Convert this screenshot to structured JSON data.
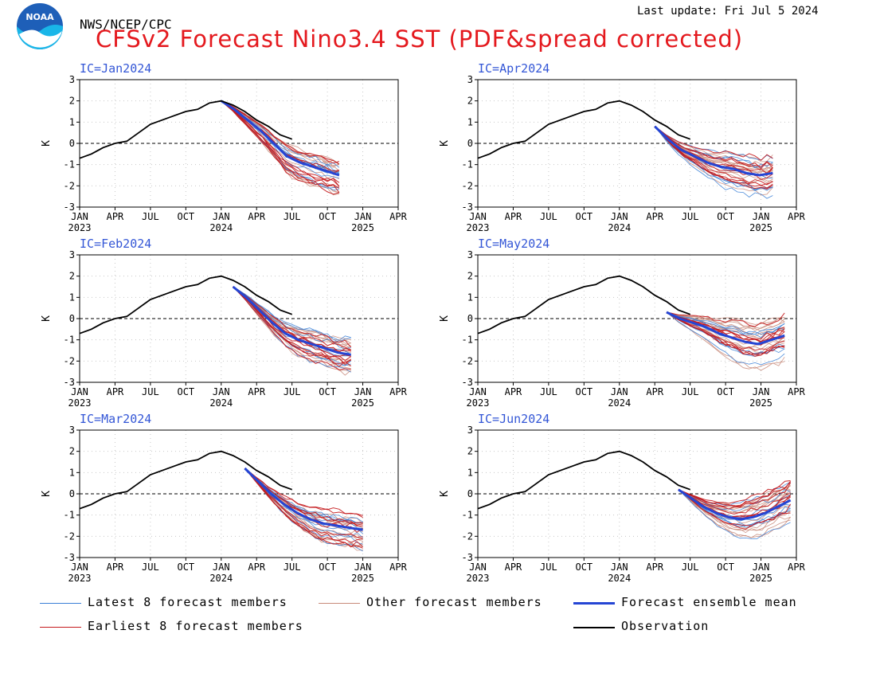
{
  "header": {
    "agency": "NWS/NCEP/CPC",
    "last_update": "Last update: Fri Jul 5 2024",
    "title": "CFSv2 Forecast Nino3.4 SST (PDF&spread corrected)"
  },
  "logo": {
    "text": "NOAA",
    "icon": "noaa-logo-icon"
  },
  "colors": {
    "latest": "#3a7fd6",
    "other": "#c88a7a",
    "earliest": "#c4181c",
    "mean": "#2545d4",
    "observation": "#000000",
    "panel_label": "#3356d6",
    "title": "#e4191e"
  },
  "legend": {
    "latest": "Latest 8 forecast members",
    "other": "Other forecast members",
    "mean": "Forecast ensemble mean",
    "earliest": "Earliest 8 forecast members",
    "observation": "Observation"
  },
  "chart_data": [
    {
      "type": "line",
      "ic": "IC=Jan2024",
      "ylabel": "K",
      "ylim": [
        -3,
        3
      ],
      "yticks": [
        -3,
        -2,
        -1,
        0,
        1,
        2,
        3
      ],
      "xticks": [
        "JAN",
        "APR",
        "JUL",
        "OCT",
        "JAN",
        "APR",
        "JUL",
        "OCT",
        "JAN",
        "APR"
      ],
      "years": [
        {
          "index": 0,
          "label": "2023"
        },
        {
          "index": 4,
          "label": "2024"
        },
        {
          "index": 8,
          "label": "2025"
        }
      ],
      "observation": {
        "months": [
          0,
          1,
          2,
          3,
          4,
          5,
          6,
          7,
          8,
          9,
          10,
          11,
          12,
          13,
          14,
          15,
          16,
          17,
          18
        ],
        "values": [
          -0.7,
          -0.5,
          -0.2,
          0.0,
          0.1,
          0.5,
          0.9,
          1.1,
          1.3,
          1.5,
          1.6,
          1.9,
          2.0,
          1.8,
          1.5,
          1.1,
          0.8,
          0.4,
          0.2
        ]
      },
      "forecast_start_month": 12,
      "mean": [
        2.0,
        1.6,
        1.1,
        0.6,
        0.0,
        -0.6,
        -0.9,
        -1.1,
        -1.3,
        -1.5
      ],
      "spread": [
        -0.9,
        0.6
      ]
    },
    {
      "type": "line",
      "ic": "IC=Apr2024",
      "ylabel": "K",
      "ylim": [
        -3,
        3
      ],
      "yticks": [
        -3,
        -2,
        -1,
        0,
        1,
        2,
        3
      ],
      "xticks": [
        "JAN",
        "APR",
        "JUL",
        "OCT",
        "JAN",
        "APR",
        "JUL",
        "OCT",
        "JAN",
        "APR"
      ],
      "years": [
        {
          "index": 0,
          "label": "2023"
        },
        {
          "index": 4,
          "label": "2024"
        },
        {
          "index": 8,
          "label": "2025"
        }
      ],
      "observation": {
        "months": [
          0,
          1,
          2,
          3,
          4,
          5,
          6,
          7,
          8,
          9,
          10,
          11,
          12,
          13,
          14,
          15,
          16,
          17,
          18
        ],
        "values": [
          -0.7,
          -0.5,
          -0.2,
          0.0,
          0.1,
          0.5,
          0.9,
          1.1,
          1.3,
          1.5,
          1.6,
          1.9,
          2.0,
          1.8,
          1.5,
          1.1,
          0.8,
          0.4,
          0.2
        ]
      },
      "forecast_start_month": 15,
      "mean": [
        0.8,
        0.2,
        -0.3,
        -0.6,
        -0.9,
        -1.1,
        -1.2,
        -1.4,
        -1.5,
        -1.4
      ],
      "spread": [
        -1.0,
        0.8
      ]
    },
    {
      "type": "line",
      "ic": "IC=Feb2024",
      "ylabel": "K",
      "ylim": [
        -3,
        3
      ],
      "yticks": [
        -3,
        -2,
        -1,
        0,
        1,
        2,
        3
      ],
      "xticks": [
        "JAN",
        "APR",
        "JUL",
        "OCT",
        "JAN",
        "APR",
        "JUL",
        "OCT",
        "JAN",
        "APR"
      ],
      "years": [
        {
          "index": 0,
          "label": "2023"
        },
        {
          "index": 4,
          "label": "2024"
        },
        {
          "index": 8,
          "label": "2025"
        }
      ],
      "observation": {
        "months": [
          0,
          1,
          2,
          3,
          4,
          5,
          6,
          7,
          8,
          9,
          10,
          11,
          12,
          13,
          14,
          15,
          16,
          17,
          18
        ],
        "values": [
          -0.7,
          -0.5,
          -0.2,
          0.0,
          0.1,
          0.5,
          0.9,
          1.1,
          1.3,
          1.5,
          1.6,
          1.9,
          2.0,
          1.8,
          1.5,
          1.1,
          0.8,
          0.4,
          0.2
        ]
      },
      "forecast_start_month": 13,
      "mean": [
        1.5,
        1.0,
        0.4,
        -0.2,
        -0.7,
        -1.0,
        -1.2,
        -1.4,
        -1.6,
        -1.7
      ],
      "spread": [
        -0.9,
        0.8
      ]
    },
    {
      "type": "line",
      "ic": "IC=May2024",
      "ylabel": "K",
      "ylim": [
        -3,
        3
      ],
      "yticks": [
        -3,
        -2,
        -1,
        0,
        1,
        2,
        3
      ],
      "xticks": [
        "JAN",
        "APR",
        "JUL",
        "OCT",
        "JAN",
        "APR",
        "JUL",
        "OCT",
        "JAN",
        "APR"
      ],
      "years": [
        {
          "index": 0,
          "label": "2023"
        },
        {
          "index": 4,
          "label": "2024"
        },
        {
          "index": 8,
          "label": "2025"
        }
      ],
      "observation": {
        "months": [
          0,
          1,
          2,
          3,
          4,
          5,
          6,
          7,
          8,
          9,
          10,
          11,
          12,
          13,
          14,
          15,
          16,
          17,
          18
        ],
        "values": [
          -0.7,
          -0.5,
          -0.2,
          0.0,
          0.1,
          0.5,
          0.9,
          1.1,
          1.3,
          1.5,
          1.6,
          1.9,
          2.0,
          1.8,
          1.5,
          1.1,
          0.8,
          0.4,
          0.2
        ]
      },
      "forecast_start_month": 16,
      "mean": [
        0.3,
        0.0,
        -0.2,
        -0.4,
        -0.7,
        -0.9,
        -1.1,
        -1.2,
        -1.0,
        -0.8
      ],
      "spread": [
        -1.2,
        1.0
      ]
    },
    {
      "type": "line",
      "ic": "IC=Mar2024",
      "ylabel": "K",
      "ylim": [
        -3,
        3
      ],
      "yticks": [
        -3,
        -2,
        -1,
        0,
        1,
        2,
        3
      ],
      "xticks": [
        "JAN",
        "APR",
        "JUL",
        "OCT",
        "JAN",
        "APR",
        "JUL",
        "OCT",
        "JAN",
        "APR"
      ],
      "years": [
        {
          "index": 0,
          "label": "2023"
        },
        {
          "index": 4,
          "label": "2024"
        },
        {
          "index": 8,
          "label": "2025"
        }
      ],
      "observation": {
        "months": [
          0,
          1,
          2,
          3,
          4,
          5,
          6,
          7,
          8,
          9,
          10,
          11,
          12,
          13,
          14,
          15,
          16,
          17,
          18
        ],
        "values": [
          -0.7,
          -0.5,
          -0.2,
          0.0,
          0.1,
          0.5,
          0.9,
          1.1,
          1.3,
          1.5,
          1.6,
          1.9,
          2.0,
          1.8,
          1.5,
          1.1,
          0.8,
          0.4,
          0.2
        ]
      },
      "forecast_start_month": 14,
      "mean": [
        1.2,
        0.6,
        0.0,
        -0.5,
        -0.9,
        -1.2,
        -1.4,
        -1.5,
        -1.6,
        -1.7
      ],
      "spread": [
        -0.9,
        0.7
      ]
    },
    {
      "type": "line",
      "ic": "IC=Jun2024",
      "ylabel": "K",
      "ylim": [
        -3,
        3
      ],
      "yticks": [
        -3,
        -2,
        -1,
        0,
        1,
        2,
        3
      ],
      "xticks": [
        "JAN",
        "APR",
        "JUL",
        "OCT",
        "JAN",
        "APR",
        "JUL",
        "OCT",
        "JAN",
        "APR"
      ],
      "years": [
        {
          "index": 0,
          "label": "2023"
        },
        {
          "index": 4,
          "label": "2024"
        },
        {
          "index": 8,
          "label": "2025"
        }
      ],
      "observation": {
        "months": [
          0,
          1,
          2,
          3,
          4,
          5,
          6,
          7,
          8,
          9,
          10,
          11,
          12,
          13,
          14,
          15,
          16,
          17,
          18
        ],
        "values": [
          -0.7,
          -0.5,
          -0.2,
          0.0,
          0.1,
          0.5,
          0.9,
          1.1,
          1.3,
          1.5,
          1.6,
          1.9,
          2.0,
          1.8,
          1.5,
          1.1,
          0.8,
          0.4,
          0.2
        ]
      },
      "forecast_start_month": 17,
      "mean": [
        0.2,
        -0.2,
        -0.6,
        -0.9,
        -1.1,
        -1.2,
        -1.1,
        -0.9,
        -0.6,
        -0.3
      ],
      "spread": [
        -1.1,
        1.1
      ]
    }
  ]
}
